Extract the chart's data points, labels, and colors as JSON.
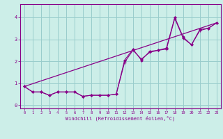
{
  "xlabel": "Windchill (Refroidissement éolien,°C)",
  "bg_color": "#cceee8",
  "line_color": "#880088",
  "grid_color": "#99cccc",
  "series1_x": [
    0,
    1,
    2,
    3,
    4,
    5,
    6,
    7,
    8,
    9,
    10,
    11,
    12,
    13,
    14,
    15,
    16,
    17,
    18,
    19,
    20,
    21,
    22,
    23
  ],
  "series1_y": [
    0.85,
    0.6,
    0.6,
    0.45,
    0.6,
    0.6,
    0.6,
    0.4,
    0.45,
    0.45,
    0.45,
    0.5,
    1.95,
    2.5,
    2.1,
    2.4,
    2.5,
    2.55,
    3.95,
    3.05,
    2.75,
    3.4,
    3.5,
    3.75
  ],
  "series2_x": [
    0,
    1,
    2,
    3,
    4,
    5,
    6,
    7,
    8,
    9,
    10,
    11,
    12,
    13,
    14,
    15,
    16,
    17,
    18,
    19,
    20,
    21,
    22,
    23
  ],
  "series2_y": [
    0.85,
    0.6,
    0.6,
    0.45,
    0.6,
    0.6,
    0.6,
    0.4,
    0.45,
    0.45,
    0.45,
    0.5,
    2.05,
    2.55,
    2.05,
    2.45,
    2.5,
    2.6,
    4.0,
    3.1,
    2.75,
    3.45,
    3.5,
    3.75
  ],
  "trend_x": [
    0,
    23
  ],
  "trend_y": [
    0.85,
    3.75
  ],
  "ylim": [
    -0.15,
    4.6
  ],
  "xlim": [
    -0.5,
    23.5
  ],
  "yticks": [
    0,
    1,
    2,
    3,
    4
  ],
  "xticks": [
    0,
    1,
    2,
    3,
    4,
    5,
    6,
    7,
    8,
    9,
    10,
    11,
    12,
    13,
    14,
    15,
    16,
    17,
    18,
    19,
    20,
    21,
    22,
    23
  ]
}
